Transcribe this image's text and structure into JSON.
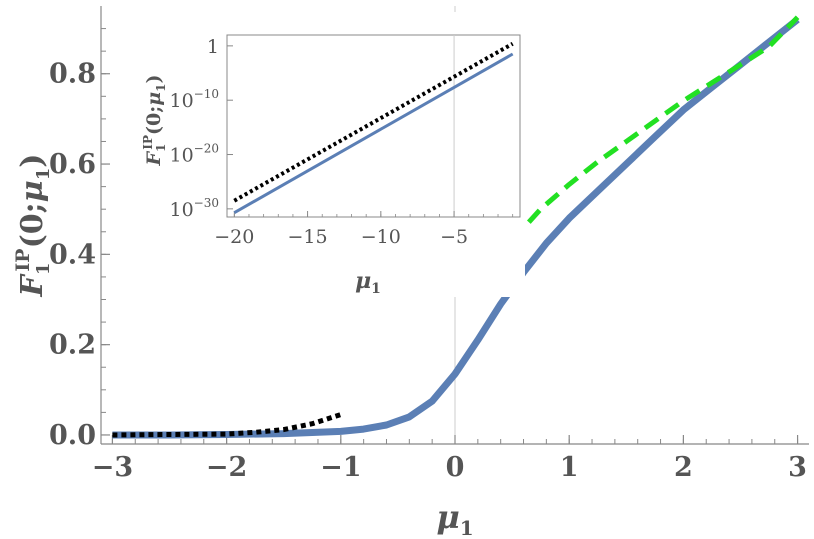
{
  "chart_data": [
    {
      "id": "main",
      "type": "line",
      "title": "",
      "xlabel": {
        "base": "μ",
        "sub": "1"
      },
      "ylabel": {
        "F": "F",
        "sub1": "1",
        "sup": "IP",
        "rest_open": "(0;",
        "mu": "μ",
        "sub2": "1",
        "rest_close": ")"
      },
      "xlim": [
        -3.1,
        3.1
      ],
      "ylim": [
        -0.02,
        0.95
      ],
      "xticks": [
        {
          "v": -3,
          "label": "−3"
        },
        {
          "v": -2,
          "label": "−2"
        },
        {
          "v": -1,
          "label": "−1"
        },
        {
          "v": 0,
          "label": "0"
        },
        {
          "v": 1,
          "label": "1"
        },
        {
          "v": 2,
          "label": "2"
        },
        {
          "v": 3,
          "label": "3"
        }
      ],
      "yticks": [
        {
          "v": 0.0,
          "label": "0.0"
        },
        {
          "v": 0.2,
          "label": "0.2"
        },
        {
          "v": 0.4,
          "label": "0.4"
        },
        {
          "v": 0.6,
          "label": "0.6"
        },
        {
          "v": 0.8,
          "label": "0.8"
        }
      ],
      "vline_x": 0,
      "series": [
        {
          "style": "solid",
          "color": "#5b7fb5",
          "x": [
            -3,
            -2.5,
            -2,
            -1.5,
            -1,
            -0.8,
            -0.6,
            -0.4,
            -0.2,
            0,
            0.2,
            0.4,
            0.6,
            0.8,
            1,
            1.25,
            1.5,
            1.75,
            2,
            2.25,
            2.5,
            2.75,
            3
          ],
          "y": [
            0.0,
            0.0,
            0.001,
            0.003,
            0.008,
            0.013,
            0.022,
            0.04,
            0.075,
            0.135,
            0.21,
            0.29,
            0.36,
            0.425,
            0.48,
            0.54,
            0.6,
            0.66,
            0.72,
            0.77,
            0.82,
            0.87,
            0.92
          ]
        },
        {
          "style": "dotted",
          "color": "#000000",
          "x": [
            -3,
            -2.5,
            -2,
            -1.75,
            -1.5,
            -1.25,
            -1
          ],
          "y": [
            0.0,
            0.001,
            0.002,
            0.006,
            0.012,
            0.025,
            0.045
          ]
        },
        {
          "style": "dashed",
          "color": "#22e022",
          "x": [
            0.5,
            0.75,
            1,
            1.25,
            1.5,
            1.75,
            2,
            2.25,
            2.5,
            2.75,
            3
          ],
          "y": [
            0.43,
            0.5,
            0.555,
            0.605,
            0.65,
            0.695,
            0.74,
            0.78,
            0.82,
            0.86,
            0.925
          ]
        }
      ]
    },
    {
      "id": "inset",
      "type": "line",
      "title": "",
      "scale_y": "log",
      "xlabel": {
        "base": "μ",
        "sub": "1"
      },
      "ylabel": {
        "F": "F",
        "sub1": "1",
        "sup": "IP",
        "rest_open": "(0;",
        "mu": "μ",
        "sub2": "1",
        "rest_close": ")"
      },
      "xlim": [
        -20.5,
        -0.5
      ],
      "ylim_log10": [
        -31.5,
        2
      ],
      "xticks": [
        {
          "v": -20,
          "label": "−20"
        },
        {
          "v": -15,
          "label": "−15"
        },
        {
          "v": -10,
          "label": "−10"
        },
        {
          "v": -5,
          "label": "−5"
        }
      ],
      "yticks": [
        {
          "v": 0,
          "base": "1",
          "exp": ""
        },
        {
          "v": -10,
          "base": "10",
          "exp": "−10"
        },
        {
          "v": -20,
          "base": "10",
          "exp": "−20"
        },
        {
          "v": -30,
          "base": "10",
          "exp": "−30"
        }
      ],
      "vline_x": -5,
      "series": [
        {
          "style": "solid",
          "color": "#5b7fb5",
          "x": [
            -20,
            -1
          ],
          "y_log10": [
            -30.7,
            -1.5
          ]
        },
        {
          "style": "dotted",
          "color": "#000000",
          "x": [
            -20,
            -1
          ],
          "y_log10": [
            -28.5,
            0.4
          ]
        }
      ]
    }
  ]
}
